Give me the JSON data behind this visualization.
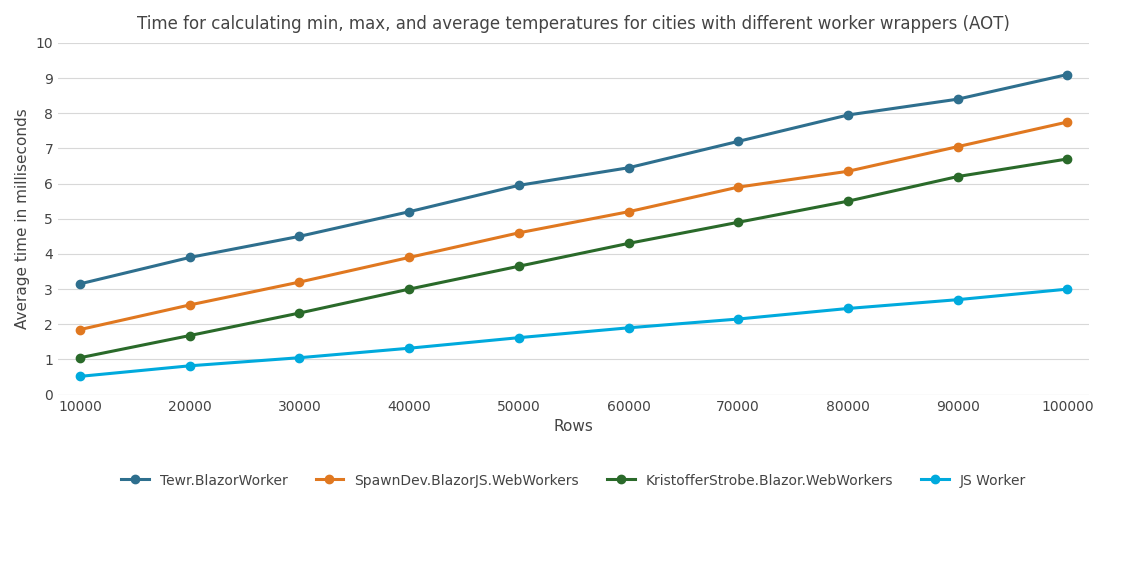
{
  "title": "Time for calculating min, max, and average temperatures for cities with different worker wrappers (AOT)",
  "xlabel": "Rows",
  "ylabel": "Average time in milliseconds",
  "x": [
    10000,
    20000,
    30000,
    40000,
    50000,
    60000,
    70000,
    80000,
    90000,
    100000
  ],
  "series": [
    {
      "label": "Tewr.BlazorWorker",
      "color": "#2e6f8e",
      "marker": "o",
      "values": [
        3.15,
        3.9,
        4.5,
        5.2,
        5.95,
        6.45,
        7.2,
        7.95,
        8.4,
        9.1
      ]
    },
    {
      "label": "SpawnDev.BlazorJS.WebWorkers",
      "color": "#e07820",
      "marker": "o",
      "values": [
        1.85,
        2.55,
        3.2,
        3.9,
        4.6,
        5.2,
        5.9,
        6.35,
        7.05,
        7.75
      ]
    },
    {
      "label": "KristofferStrobe.Blazor.WebWorkers",
      "color": "#2a6a2a",
      "marker": "o",
      "values": [
        1.05,
        1.68,
        2.32,
        3.0,
        3.65,
        4.3,
        4.9,
        5.5,
        6.2,
        6.7
      ]
    },
    {
      "label": "JS Worker",
      "color": "#00aadd",
      "marker": "o",
      "values": [
        0.52,
        0.82,
        1.05,
        1.32,
        1.62,
        1.9,
        2.15,
        2.45,
        2.7,
        3.0
      ]
    }
  ],
  "xlim": [
    8000,
    102000
  ],
  "ylim": [
    0,
    10
  ],
  "yticks": [
    0,
    1,
    2,
    3,
    4,
    5,
    6,
    7,
    8,
    9,
    10
  ],
  "xticks": [
    10000,
    20000,
    30000,
    40000,
    50000,
    60000,
    70000,
    80000,
    90000,
    100000
  ],
  "background_color": "#ffffff",
  "plot_bg_color": "#ffffff",
  "grid_color": "#d8d8d8",
  "text_color": "#444444",
  "title_fontsize": 12,
  "axis_label_fontsize": 11,
  "tick_fontsize": 10,
  "legend_fontsize": 10,
  "linewidth": 2.2,
  "markersize": 6
}
